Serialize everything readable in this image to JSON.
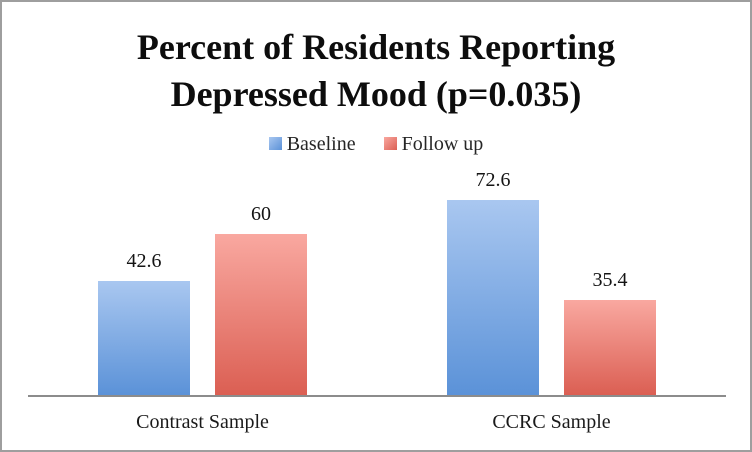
{
  "window": {
    "border_color": "#9e9e9e",
    "background": "#ffffff"
  },
  "chart_data": {
    "type": "bar",
    "title": "Percent of Residents Reporting Depressed Mood (p=0.035)",
    "title_lines": [
      "Percent of Residents Reporting",
      "Depressed Mood (p=0.035)"
    ],
    "categories": [
      "Contrast Sample",
      "CCRC Sample"
    ],
    "series": [
      {
        "name": "Baseline",
        "values": [
          42.6,
          72.6
        ],
        "color_top": "#a9c7f0",
        "color_bottom": "#5b92d8"
      },
      {
        "name": "Follow up",
        "values": [
          60,
          35.4
        ],
        "color_top": "#f9a8a0",
        "color_bottom": "#db5f53"
      }
    ],
    "xlabel": "",
    "ylabel": "",
    "ylim": [
      0,
      85
    ],
    "grid": false,
    "legend_position": "top-center",
    "axis_line_color": "#8c8c8c",
    "value_labels_shown": true
  }
}
